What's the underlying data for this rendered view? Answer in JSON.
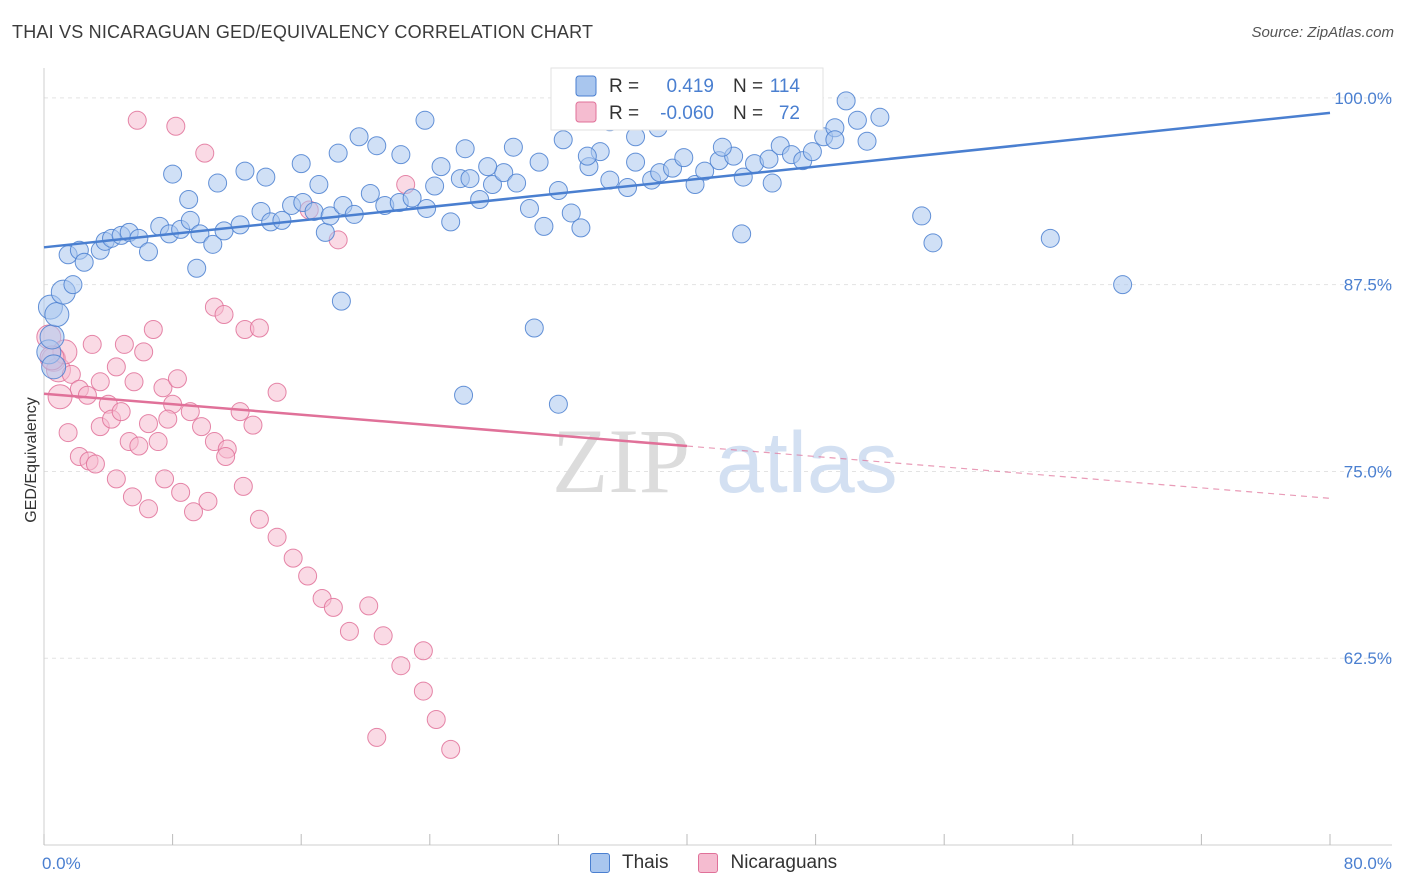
{
  "title": "THAI VS NICARAGUAN GED/EQUIVALENCY CORRELATION CHART",
  "source": "Source: ZipAtlas.com",
  "watermark": {
    "zip": "ZIP",
    "atlas": "atlas"
  },
  "chart_data": {
    "type": "scatter",
    "ylabel": "GED/Equivalency",
    "xlim": [
      0,
      80
    ],
    "ylim": [
      50,
      102
    ],
    "x_tick_labels": [
      "0.0%",
      "80.0%"
    ],
    "y_ticks": [
      {
        "value": 100,
        "label": "100.0%"
      },
      {
        "value": 87.5,
        "label": "87.5%"
      },
      {
        "value": 75,
        "label": "75.0%"
      },
      {
        "value": 62.5,
        "label": "62.5%"
      }
    ],
    "grid": "horizontal dashed",
    "legend_top": [
      {
        "r_label": "R =",
        "r_value": "0.419",
        "n_label": "N =",
        "n_value": "114"
      },
      {
        "r_label": "R =",
        "r_value": "-0.060",
        "n_label": "N =",
        "n_value": "72"
      }
    ],
    "colors": {
      "thais": "#4a7fd0",
      "thais_fill": "#a9c6ee",
      "nicaraguans": "#e07199",
      "nicaraguans_fill": "#f5bcd0",
      "tick": "#4a7fd0"
    },
    "series": [
      {
        "name": "Thais",
        "trend": {
          "x": [
            0,
            80
          ],
          "y": [
            90.0,
            99.0
          ],
          "solid_to": 80
        },
        "points": [
          [
            0.3,
            83
          ],
          [
            0.4,
            86
          ],
          [
            0.5,
            84
          ],
          [
            0.6,
            82
          ],
          [
            0.8,
            85.5
          ],
          [
            1.2,
            87
          ],
          [
            1.8,
            87.5
          ],
          [
            1.5,
            89.5
          ],
          [
            2.2,
            89.8
          ],
          [
            2.5,
            89
          ],
          [
            3.5,
            89.8
          ],
          [
            3.8,
            90.4
          ],
          [
            4.2,
            90.6
          ],
          [
            4.8,
            90.8
          ],
          [
            5.3,
            91
          ],
          [
            5.9,
            90.6
          ],
          [
            6.5,
            89.7
          ],
          [
            7.2,
            91.4
          ],
          [
            7.8,
            90.9
          ],
          [
            8.5,
            91.2
          ],
          [
            9.1,
            91.8
          ],
          [
            9.7,
            90.9
          ],
          [
            10.5,
            90.2
          ],
          [
            11.2,
            91.1
          ],
          [
            12.2,
            91.5
          ],
          [
            13.5,
            92.4
          ],
          [
            14.1,
            91.7
          ],
          [
            14.8,
            91.8
          ],
          [
            15.4,
            92.8
          ],
          [
            16.1,
            93
          ],
          [
            16.8,
            92.4
          ],
          [
            17.5,
            91
          ],
          [
            17.8,
            92.1
          ],
          [
            18.6,
            92.8
          ],
          [
            19.3,
            92.2
          ],
          [
            20.3,
            93.6
          ],
          [
            21.2,
            92.8
          ],
          [
            22.1,
            93
          ],
          [
            22.9,
            93.3
          ],
          [
            23.8,
            92.6
          ],
          [
            24.3,
            94.1
          ],
          [
            25.3,
            91.7
          ],
          [
            25.9,
            94.6
          ],
          [
            26.5,
            94.6
          ],
          [
            27.1,
            93.2
          ],
          [
            27.9,
            94.2
          ],
          [
            28.6,
            95
          ],
          [
            29.4,
            94.3
          ],
          [
            30.2,
            92.6
          ],
          [
            31.1,
            91.4
          ],
          [
            32,
            93.8
          ],
          [
            32.8,
            92.3
          ],
          [
            33.4,
            91.3
          ],
          [
            33.9,
            95.4
          ],
          [
            34.6,
            96.4
          ],
          [
            35.2,
            94.5
          ],
          [
            36.3,
            94
          ],
          [
            36.8,
            95.7
          ],
          [
            37.8,
            94.5
          ],
          [
            38.3,
            95
          ],
          [
            39.1,
            95.3
          ],
          [
            39.8,
            96
          ],
          [
            40.5,
            94.2
          ],
          [
            41.1,
            95.1
          ],
          [
            42,
            95.8
          ],
          [
            42.9,
            96.1
          ],
          [
            43.5,
            94.7
          ],
          [
            44.2,
            95.6
          ],
          [
            45.1,
            95.9
          ],
          [
            45.8,
            96.8
          ],
          [
            46.5,
            96.2
          ],
          [
            47.2,
            95.8
          ],
          [
            47.8,
            96.4
          ],
          [
            48.5,
            97.4
          ],
          [
            49.2,
            98
          ],
          [
            49.9,
            99.8
          ],
          [
            50.6,
            98.5
          ],
          [
            51.2,
            97.1
          ],
          [
            52,
            98.7
          ],
          [
            8,
            94.9
          ],
          [
            9,
            93.2
          ],
          [
            10.8,
            94.3
          ],
          [
            12.5,
            95.1
          ],
          [
            13.8,
            94.7
          ],
          [
            16,
            95.6
          ],
          [
            17.1,
            94.2
          ],
          [
            18.3,
            96.3
          ],
          [
            19.6,
            97.4
          ],
          [
            20.7,
            96.8
          ],
          [
            22.2,
            96.2
          ],
          [
            23.7,
            98.5
          ],
          [
            24.7,
            95.4
          ],
          [
            26.2,
            96.6
          ],
          [
            27.6,
            95.4
          ],
          [
            29.2,
            96.7
          ],
          [
            30.8,
            95.7
          ],
          [
            32.3,
            97.2
          ],
          [
            33.8,
            96.1
          ],
          [
            35.2,
            98.4
          ],
          [
            36.8,
            97.4
          ],
          [
            38.2,
            98
          ],
          [
            39.6,
            99.2
          ],
          [
            42.2,
            96.7
          ],
          [
            43.4,
            90.9
          ],
          [
            45.3,
            94.3
          ],
          [
            49.2,
            97.2
          ],
          [
            54.6,
            92.1
          ],
          [
            55.3,
            90.3
          ],
          [
            67.1,
            87.5
          ],
          [
            62.6,
            90.6
          ],
          [
            9.5,
            88.6
          ],
          [
            18.5,
            86.4
          ],
          [
            26.1,
            80.1
          ],
          [
            32,
            79.5
          ],
          [
            30.5,
            84.6
          ]
        ]
      },
      {
        "name": "Nicaraguans",
        "trend": {
          "x": [
            0,
            80
          ],
          "y": [
            80.2,
            73.2
          ],
          "solid_to": 40
        },
        "points": [
          [
            0.3,
            84
          ],
          [
            0.6,
            82.5
          ],
          [
            0.9,
            81.8
          ],
          [
            1.3,
            83
          ],
          [
            1.7,
            81.5
          ],
          [
            2.2,
            80.5
          ],
          [
            2.7,
            80.1
          ],
          [
            3,
            83.5
          ],
          [
            3.5,
            81
          ],
          [
            4,
            79.5
          ],
          [
            4.5,
            82
          ],
          [
            5,
            83.5
          ],
          [
            5.6,
            81
          ],
          [
            6.2,
            83
          ],
          [
            6.8,
            84.5
          ],
          [
            7.4,
            80.6
          ],
          [
            8,
            79.5
          ],
          [
            0.5,
            82.6
          ],
          [
            1,
            80
          ],
          [
            1.5,
            77.6
          ],
          [
            2.2,
            76
          ],
          [
            2.8,
            75.7
          ],
          [
            3.5,
            78
          ],
          [
            4.2,
            78.5
          ],
          [
            4.8,
            79
          ],
          [
            5.3,
            77
          ],
          [
            5.9,
            76.7
          ],
          [
            6.5,
            78.2
          ],
          [
            7.1,
            77
          ],
          [
            7.7,
            78.5
          ],
          [
            8.3,
            81.2
          ],
          [
            9.1,
            79
          ],
          [
            9.8,
            78
          ],
          [
            10.6,
            77
          ],
          [
            11.4,
            76.5
          ],
          [
            12.2,
            79
          ],
          [
            13,
            78.1
          ],
          [
            14.5,
            80.3
          ],
          [
            3.2,
            75.5
          ],
          [
            4.5,
            74.5
          ],
          [
            5.5,
            73.3
          ],
          [
            6.5,
            72.5
          ],
          [
            7.5,
            74.5
          ],
          [
            8.5,
            73.6
          ],
          [
            9.3,
            72.3
          ],
          [
            10.2,
            73
          ],
          [
            11.3,
            76
          ],
          [
            12.4,
            74
          ],
          [
            13.4,
            71.8
          ],
          [
            14.5,
            70.6
          ],
          [
            15.5,
            69.2
          ],
          [
            16.4,
            68
          ],
          [
            17.3,
            66.5
          ],
          [
            18,
            65.9
          ],
          [
            19,
            64.3
          ],
          [
            20.2,
            66
          ],
          [
            21.1,
            64
          ],
          [
            22.2,
            62
          ],
          [
            23.6,
            60.3
          ],
          [
            24.4,
            58.4
          ],
          [
            25.3,
            56.4
          ],
          [
            5.8,
            98.5
          ],
          [
            8.2,
            98.1
          ],
          [
            10,
            96.3
          ],
          [
            10.6,
            86
          ],
          [
            11.2,
            85.5
          ],
          [
            12.5,
            84.5
          ],
          [
            13.4,
            84.6
          ],
          [
            16.5,
            92.5
          ],
          [
            18.3,
            90.5
          ],
          [
            22.5,
            94.2
          ],
          [
            23.6,
            63
          ],
          [
            20.7,
            57.2
          ]
        ]
      }
    ]
  }
}
